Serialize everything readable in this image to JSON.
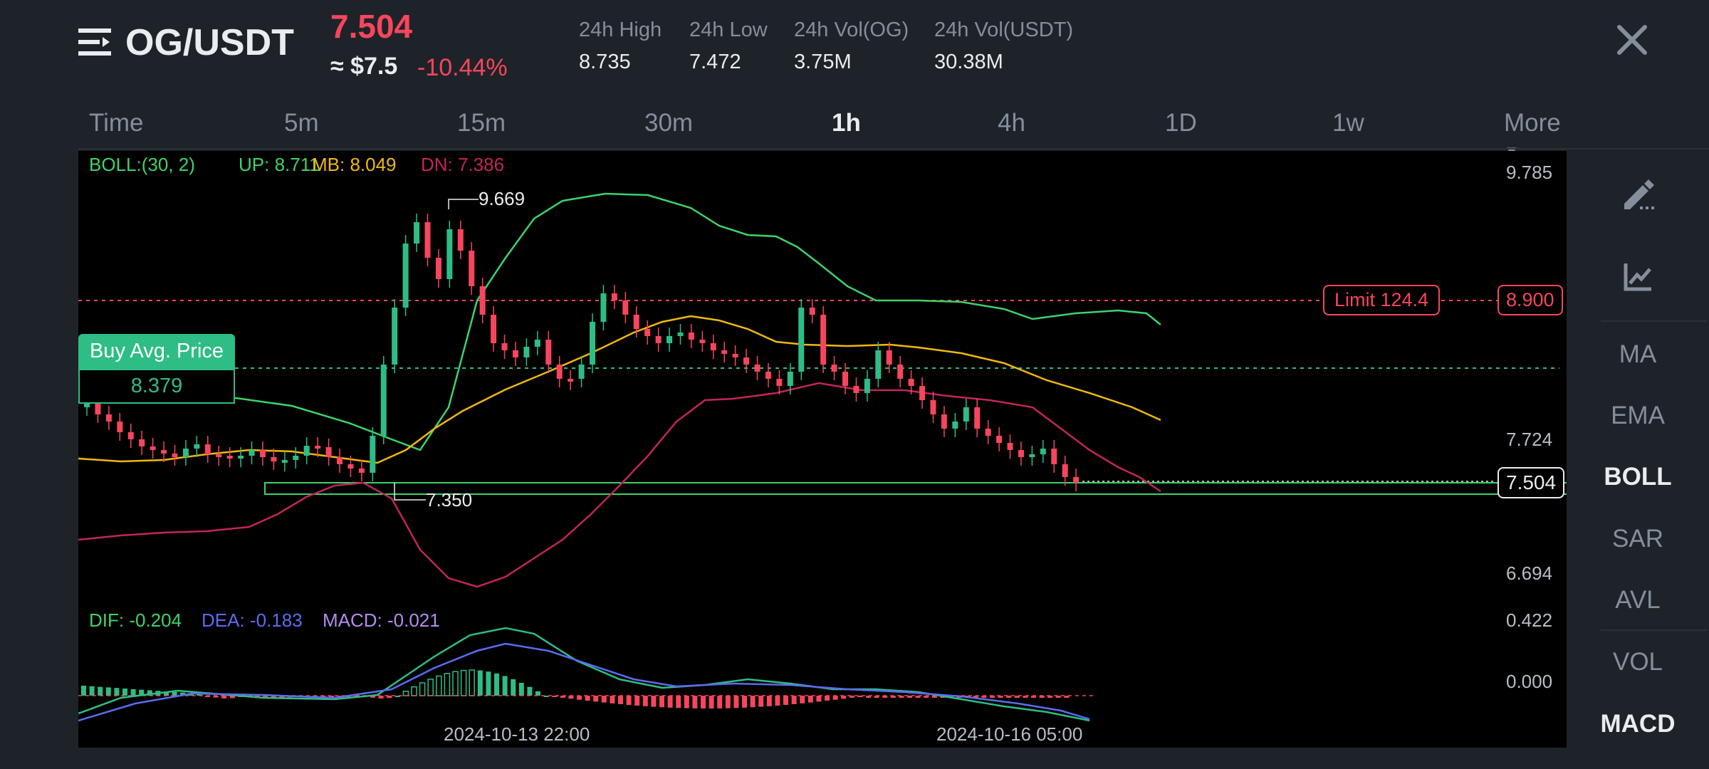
{
  "header": {
    "pair": "OG/USDT",
    "price": "7.504",
    "usd_price": "≈ $7.5",
    "change": "-10.44%",
    "stats": [
      {
        "label": "24h High",
        "value": "8.735"
      },
      {
        "label": "24h Low",
        "value": "7.472"
      },
      {
        "label": "24h Vol(OG)",
        "value": "3.75M"
      },
      {
        "label": "24h Vol(USDT)",
        "value": "30.38M"
      }
    ]
  },
  "tabs": [
    "Time",
    "5m",
    "15m",
    "30m",
    "1h",
    "4h",
    "1D",
    "1w",
    "More"
  ],
  "active_tab": "1h",
  "sidebar": {
    "tools": [
      "draw-pen-icon",
      "indicator-chart-icon"
    ],
    "items": [
      "MA",
      "EMA",
      "BOLL",
      "SAR",
      "AVL",
      "VOL",
      "MACD"
    ],
    "active": [
      "BOLL",
      "MACD"
    ]
  },
  "chart": {
    "boll": {
      "label": "BOLL:(30, 2)",
      "up": "UP: 8.711",
      "mb": "MB: 8.049",
      "dn": "DN: 7.386"
    },
    "price_axis": [
      "9.785",
      "7.724",
      "6.694"
    ],
    "high_marker": "9.669",
    "low_marker": "7.350",
    "limit_order": {
      "label": "Limit  124.4",
      "price": "8.900"
    },
    "buy_avg": {
      "label": "Buy Avg. Price",
      "value": "8.379"
    },
    "current_price": "7.504",
    "macd": {
      "dif": "DIF: -0.204",
      "dea": "DEA: -0.183",
      "macd": "MACD: -0.021"
    },
    "macd_axis": [
      "0.422",
      "0.000"
    ],
    "time_labels": [
      "2024-10-13 22:00",
      "2024-10-16 05:00"
    ],
    "colors": {
      "up": "#2ebd85",
      "down": "#f6465d",
      "boll_up": "#3dd36b",
      "boll_mb": "#f0b90b",
      "boll_dn": "#c2255c",
      "dea": "#5b6cf0",
      "macd": "#b48cf0"
    }
  }
}
